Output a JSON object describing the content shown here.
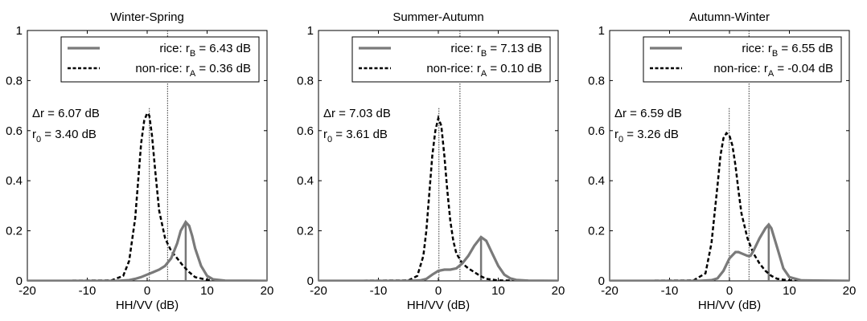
{
  "chart_data": [
    {
      "type": "line",
      "title": "Winter-Spring",
      "xlabel": "HH/VV (dB)",
      "ylabel": "",
      "xlim": [
        -20,
        20
      ],
      "ylim": [
        0,
        1
      ],
      "xticks": [
        "-20",
        "-10",
        "0",
        "10",
        "20"
      ],
      "yticks": [
        "0",
        "0.2",
        "0.4",
        "0.6",
        "0.8",
        "1"
      ],
      "grid": false,
      "legend_position": "top",
      "legend": [
        {
          "label": "rice:",
          "sym": "r",
          "sub": "B",
          "value": "= 6.43 dB",
          "style": "solid"
        },
        {
          "label": "non-rice:",
          "sym": "r",
          "sub": "A",
          "value": "= 0.36 dB",
          "style": "dashed"
        }
      ],
      "annotations": [
        {
          "sym": "Δr",
          "sub": "",
          "value": "= 6.07 dB"
        },
        {
          "sym": "r",
          "sub": "0",
          "value": "= 3.40 dB"
        }
      ],
      "vlines": [
        0.36,
        3.4,
        6.43
      ],
      "series": [
        {
          "name": "non-rice",
          "style": "dashed",
          "x": [
            -20,
            -6,
            -4,
            -3,
            -2,
            -1.5,
            -1,
            -0.5,
            0,
            0.36,
            0.8,
            1.3,
            2,
            3,
            4,
            5,
            6,
            7,
            8,
            10,
            14,
            20
          ],
          "y": [
            0,
            0.002,
            0.02,
            0.08,
            0.25,
            0.4,
            0.55,
            0.64,
            0.67,
            0.66,
            0.58,
            0.45,
            0.28,
            0.17,
            0.12,
            0.09,
            0.06,
            0.035,
            0.015,
            0.004,
            0,
            0
          ]
        },
        {
          "name": "rice",
          "style": "solid",
          "x": [
            -20,
            -5,
            -3,
            -2,
            -1,
            0,
            1,
            2,
            3,
            4,
            5,
            5.6,
            6.43,
            7,
            7.5,
            8,
            9,
            10,
            11,
            13,
            20
          ],
          "y": [
            0,
            0,
            0.003,
            0.008,
            0.015,
            0.025,
            0.035,
            0.045,
            0.06,
            0.09,
            0.15,
            0.2,
            0.235,
            0.22,
            0.18,
            0.13,
            0.06,
            0.02,
            0.006,
            0.001,
            0
          ]
        }
      ]
    },
    {
      "type": "line",
      "title": "Summer-Autumn",
      "xlabel": "HH/VV (dB)",
      "ylabel": "",
      "xlim": [
        -20,
        20
      ],
      "ylim": [
        0,
        1
      ],
      "xticks": [
        "-20",
        "-10",
        "0",
        "10",
        "20"
      ],
      "yticks": [
        "0",
        "0.2",
        "0.4",
        "0.6",
        "0.8",
        "1"
      ],
      "grid": false,
      "legend_position": "top",
      "legend": [
        {
          "label": "rice:",
          "sym": "r",
          "sub": "B",
          "value": "= 7.13 dB",
          "style": "solid"
        },
        {
          "label": "non-rice:",
          "sym": "r",
          "sub": "A",
          "value": "= 0.10 dB",
          "style": "dashed"
        }
      ],
      "annotations": [
        {
          "sym": "Δr",
          "sub": "",
          "value": "= 7.03 dB"
        },
        {
          "sym": "r",
          "sub": "0",
          "value": "= 3.61 dB"
        }
      ],
      "vlines": [
        0.1,
        3.61,
        7.13
      ],
      "series": [
        {
          "name": "non-rice",
          "style": "dashed",
          "x": [
            -20,
            -5,
            -3.5,
            -2.5,
            -2,
            -1.5,
            -1,
            -0.5,
            0,
            0.5,
            1,
            1.5,
            2,
            2.5,
            3,
            4,
            5,
            6,
            7,
            8,
            10,
            20
          ],
          "y": [
            0,
            0.002,
            0.02,
            0.1,
            0.2,
            0.35,
            0.5,
            0.6,
            0.65,
            0.62,
            0.5,
            0.36,
            0.24,
            0.16,
            0.11,
            0.07,
            0.05,
            0.035,
            0.02,
            0.008,
            0.002,
            0
          ]
        },
        {
          "name": "rice",
          "style": "solid",
          "x": [
            -20,
            -5,
            -3,
            -2,
            -1,
            0,
            1,
            2,
            3,
            4,
            5,
            6,
            7.13,
            8,
            9,
            10,
            11,
            12,
            13,
            15,
            20
          ],
          "y": [
            0,
            0,
            0.002,
            0.008,
            0.025,
            0.04,
            0.045,
            0.045,
            0.05,
            0.07,
            0.1,
            0.14,
            0.175,
            0.16,
            0.11,
            0.06,
            0.025,
            0.01,
            0.004,
            0.001,
            0
          ]
        }
      ]
    },
    {
      "type": "line",
      "title": "Autumn-Winter",
      "xlabel": "HH/VV (dB)",
      "ylabel": "",
      "xlim": [
        -20,
        20
      ],
      "ylim": [
        0,
        1
      ],
      "xticks": [
        "-20",
        "-10",
        "0",
        "10",
        "20"
      ],
      "yticks": [
        "0",
        "0.2",
        "0.4",
        "0.6",
        "0.8",
        "1"
      ],
      "grid": false,
      "legend_position": "top",
      "legend": [
        {
          "label": "rice:",
          "sym": "r",
          "sub": "B",
          "value": "= 6.55 dB",
          "style": "solid"
        },
        {
          "label": "non-rice:",
          "sym": "r",
          "sub": "A",
          "value": "= -0.04 dB",
          "style": "dashed"
        }
      ],
      "annotations": [
        {
          "sym": "Δr",
          "sub": "",
          "value": "= 6.59 dB"
        },
        {
          "sym": "r",
          "sub": "0",
          "value": "= 3.26 dB"
        }
      ],
      "vlines": [
        -0.04,
        3.26,
        6.55
      ],
      "series": [
        {
          "name": "non-rice",
          "style": "dashed",
          "x": [
            -20,
            -6,
            -4,
            -3,
            -2,
            -1.5,
            -1,
            -0.5,
            0,
            0.5,
            1,
            1.5,
            2,
            3,
            4,
            5,
            6,
            7,
            8,
            10,
            20
          ],
          "y": [
            0,
            0.002,
            0.03,
            0.15,
            0.38,
            0.5,
            0.57,
            0.59,
            0.58,
            0.54,
            0.46,
            0.36,
            0.27,
            0.17,
            0.11,
            0.07,
            0.04,
            0.02,
            0.008,
            0.002,
            0
          ]
        },
        {
          "name": "rice",
          "style": "solid",
          "x": [
            -20,
            -5,
            -3,
            -2,
            -1,
            0,
            1,
            1.5,
            2,
            3,
            3.5,
            4,
            5,
            6,
            6.55,
            7,
            8,
            9,
            10,
            12,
            20
          ],
          "y": [
            0,
            0,
            0.003,
            0.01,
            0.04,
            0.09,
            0.115,
            0.115,
            0.11,
            0.1,
            0.1,
            0.12,
            0.17,
            0.21,
            0.225,
            0.21,
            0.13,
            0.05,
            0.015,
            0.002,
            0
          ]
        }
      ]
    }
  ]
}
